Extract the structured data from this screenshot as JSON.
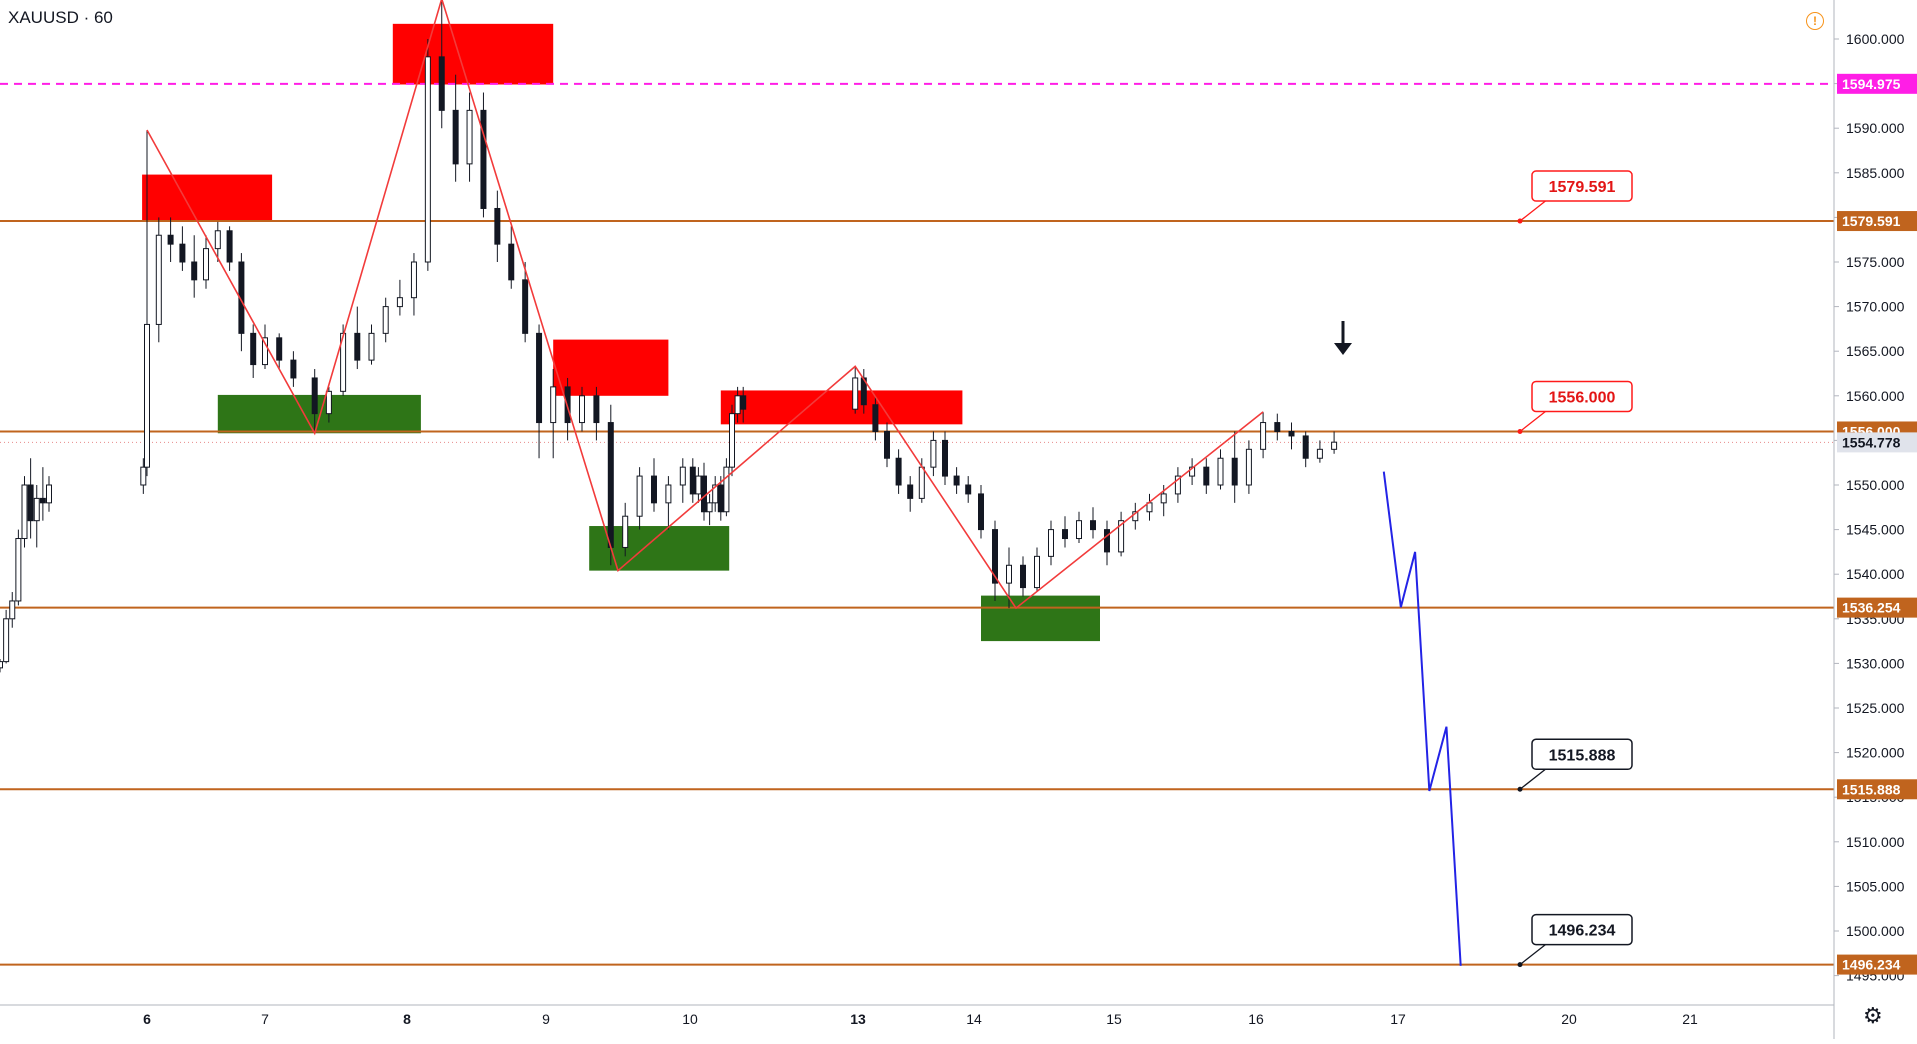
{
  "symbol": "XAUUSD · 60",
  "colors": {
    "level_line": "#c0641e",
    "resistance_zone": "#ff0000",
    "support_zone": "#2e7517",
    "zigzag": "#f23b3b",
    "projection": "#2323e6",
    "dashed_level": "#ff1ee6",
    "candle": "#131722",
    "axis_text": "#131722"
  },
  "icons": {
    "alert": "exclamation-circle-icon",
    "settings": "gear-icon",
    "down_arrow": "arrow-down-icon"
  },
  "chart_data": {
    "type": "candlestick",
    "title": "XAUUSD · 60",
    "ylim": [
      1492,
      1604
    ],
    "y_ticks": [
      "1600.000",
      "1595.000",
      "1590.000",
      "1585.000",
      "1580.000",
      "1575.000",
      "1570.000",
      "1565.000",
      "1560.000",
      "1555.000",
      "1550.000",
      "1545.000",
      "1540.000",
      "1535.000",
      "1530.000",
      "1525.000",
      "1520.000",
      "1515.000",
      "1510.000",
      "1505.000",
      "1500.000",
      "1495.000"
    ],
    "x_ticks": [
      "6",
      "7",
      "8",
      "9",
      "10",
      "13",
      "14",
      "15",
      "16",
      "17",
      "20",
      "21"
    ],
    "bold_x_ticks": [
      "6",
      "8",
      "13"
    ],
    "price_levels": [
      {
        "value": 1579.591,
        "label": "1579.591",
        "callout": true
      },
      {
        "value": 1556.0,
        "label": "1556.000",
        "callout": true
      },
      {
        "value": 1536.254,
        "label": "1536.254",
        "callout": false
      },
      {
        "value": 1515.888,
        "label": "1515.888",
        "callout": true
      },
      {
        "value": 1496.234,
        "label": "1496.234",
        "callout": true
      }
    ],
    "dashed_level": {
      "value": 1594.975,
      "label": "1594.975"
    },
    "last_price": {
      "value": 1554.778,
      "label": "1554.778"
    },
    "resistance_zones": [
      {
        "x0": 5.8,
        "x1": 7.05,
        "y0": 1579.6,
        "y1": 1584.8
      },
      {
        "x0": 7.9,
        "x1": 9.05,
        "y0": 1594.9,
        "y1": 1601.7
      },
      {
        "x0": 9.05,
        "x1": 9.85,
        "y0": 1560.0,
        "y1": 1566.3
      },
      {
        "x0": 10.55,
        "x1": 13.9,
        "y0": 1556.8,
        "y1": 1560.6
      }
    ],
    "support_zones": [
      {
        "x0": 6.6,
        "x1": 8.1,
        "y0": 1555.8,
        "y1": 1560.1
      },
      {
        "x0": 9.3,
        "x1": 10.7,
        "y0": 1540.4,
        "y1": 1545.4
      },
      {
        "x0": 14.05,
        "x1": 14.9,
        "y0": 1532.5,
        "y1": 1537.6
      }
    ],
    "zigzag": [
      {
        "x": 6.0,
        "y": 1589.8
      },
      {
        "x": 7.35,
        "y": 1555.8
      },
      {
        "x": 8.25,
        "y": 1604.5
      },
      {
        "x": 9.5,
        "y": 1540.4
      },
      {
        "x": 12.95,
        "y": 1563.3
      },
      {
        "x": 14.3,
        "y": 1536.2
      },
      {
        "x": 16.05,
        "y": 1558.2
      }
    ],
    "projection": [
      {
        "x": 16.9,
        "y": 1551.5
      },
      {
        "x": 17.05,
        "y": 1536.3
      },
      {
        "x": 17.3,
        "y": 1542.5
      },
      {
        "x": 17.55,
        "y": 1515.7
      },
      {
        "x": 17.85,
        "y": 1522.9
      },
      {
        "x": 18.1,
        "y": 1496.1
      }
    ],
    "candles": [
      [
        0.0,
        1529.5,
        1530.5,
        1529.0,
        1530.2
      ],
      [
        0.25,
        1530.2,
        1536.0,
        1530.0,
        1535.0
      ],
      [
        0.5,
        1535.0,
        1538.0,
        1534.0,
        1537.0
      ],
      [
        0.75,
        1537.0,
        1545.0,
        1536.5,
        1544.0
      ],
      [
        1.0,
        1544.0,
        1551.0,
        1543.0,
        1550.0
      ],
      [
        1.25,
        1550.0,
        1553.0,
        1544.0,
        1546.0
      ],
      [
        1.5,
        1546.0,
        1550.0,
        1543.0,
        1548.5
      ],
      [
        1.75,
        1548.5,
        1552.0,
        1546.0,
        1548.0
      ],
      [
        2.0,
        1548.0,
        1551.0,
        1547.0,
        1550.0
      ],
      [
        5.85,
        1550.0,
        1553.0,
        1549.0,
        1552.0
      ],
      [
        6.0,
        1552.0,
        1589.8,
        1551.0,
        1568.0
      ],
      [
        6.1,
        1568.0,
        1580.0,
        1566.0,
        1578.0
      ],
      [
        6.2,
        1578.0,
        1580.0,
        1575.0,
        1577.0
      ],
      [
        6.3,
        1577.0,
        1579.0,
        1574.0,
        1575.0
      ],
      [
        6.4,
        1575.0,
        1578.0,
        1571.0,
        1573.0
      ],
      [
        6.5,
        1573.0,
        1578.0,
        1572.0,
        1576.5
      ],
      [
        6.6,
        1576.5,
        1579.5,
        1575.0,
        1578.5
      ],
      [
        6.7,
        1578.5,
        1579.0,
        1574.0,
        1575.0
      ],
      [
        6.8,
        1575.0,
        1576.0,
        1565.0,
        1567.0
      ],
      [
        6.9,
        1567.0,
        1568.0,
        1562.0,
        1563.5
      ],
      [
        7.0,
        1563.5,
        1568.0,
        1563.0,
        1566.5
      ],
      [
        7.1,
        1566.5,
        1567.0,
        1563.0,
        1564.0
      ],
      [
        7.2,
        1564.0,
        1565.0,
        1561.0,
        1562.0
      ],
      [
        7.35,
        1562.0,
        1563.0,
        1556.0,
        1558.0
      ],
      [
        7.45,
        1558.0,
        1561.0,
        1557.0,
        1560.5
      ],
      [
        7.55,
        1560.5,
        1568.0,
        1560.0,
        1567.0
      ],
      [
        7.65,
        1567.0,
        1570.0,
        1563.0,
        1564.0
      ],
      [
        7.75,
        1564.0,
        1568.0,
        1563.5,
        1567.0
      ],
      [
        7.85,
        1567.0,
        1571.0,
        1566.0,
        1570.0
      ],
      [
        7.95,
        1570.0,
        1573.0,
        1569.0,
        1571.0
      ],
      [
        8.05,
        1571.0,
        1576.0,
        1569.0,
        1575.0
      ],
      [
        8.15,
        1575.0,
        1600.0,
        1574.0,
        1598.0
      ],
      [
        8.25,
        1598.0,
        1604.5,
        1590.0,
        1592.0
      ],
      [
        8.35,
        1592.0,
        1596.0,
        1584.0,
        1586.0
      ],
      [
        8.45,
        1586.0,
        1594.0,
        1584.0,
        1592.0
      ],
      [
        8.55,
        1592.0,
        1594.0,
        1580.0,
        1581.0
      ],
      [
        8.65,
        1581.0,
        1583.0,
        1575.0,
        1577.0
      ],
      [
        8.75,
        1577.0,
        1579.0,
        1572.0,
        1573.0
      ],
      [
        8.85,
        1573.0,
        1575.0,
        1566.0,
        1567.0
      ],
      [
        8.95,
        1567.0,
        1568.0,
        1553.0,
        1557.0
      ],
      [
        9.05,
        1557.0,
        1563.0,
        1553.0,
        1561.0
      ],
      [
        9.15,
        1561.0,
        1562.0,
        1555.0,
        1557.0
      ],
      [
        9.25,
        1557.0,
        1561.0,
        1556.0,
        1560.0
      ],
      [
        9.35,
        1560.0,
        1561.0,
        1555.0,
        1557.0
      ],
      [
        9.45,
        1557.0,
        1559.0,
        1541.0,
        1543.0
      ],
      [
        9.55,
        1543.0,
        1548.0,
        1542.0,
        1546.5
      ],
      [
        9.65,
        1546.5,
        1552.0,
        1545.0,
        1551.0
      ],
      [
        9.75,
        1551.0,
        1553.0,
        1547.0,
        1548.0
      ],
      [
        9.85,
        1548.0,
        1551.0,
        1545.0,
        1550.0
      ],
      [
        9.95,
        1550.0,
        1553.0,
        1548.0,
        1552.0
      ],
      [
        10.05,
        1552.0,
        1553.0,
        1548.0,
        1549.0
      ],
      [
        10.15,
        1549.0,
        1552.0,
        1548.0,
        1551.0
      ],
      [
        10.25,
        1551.0,
        1552.5,
        1546.0,
        1547.0
      ],
      [
        10.35,
        1547.0,
        1549.0,
        1545.5,
        1548.0
      ],
      [
        10.45,
        1548.0,
        1551.0,
        1547.0,
        1550.0
      ],
      [
        10.55,
        1550.0,
        1551.0,
        1546.0,
        1547.0
      ],
      [
        10.65,
        1547.0,
        1553.0,
        1546.5,
        1552.0
      ],
      [
        10.75,
        1552.0,
        1559.0,
        1551.0,
        1558.0
      ],
      [
        10.85,
        1558.0,
        1561.0,
        1557.0,
        1560.0
      ],
      [
        10.95,
        1560.0,
        1561.0,
        1557.0,
        1558.5
      ],
      [
        12.95,
        1558.5,
        1563.3,
        1558.0,
        1562.0
      ],
      [
        13.05,
        1562.0,
        1563.0,
        1558.0,
        1559.0
      ],
      [
        13.15,
        1559.0,
        1560.0,
        1555.0,
        1556.0
      ],
      [
        13.25,
        1556.0,
        1557.0,
        1552.0,
        1553.0
      ],
      [
        13.35,
        1553.0,
        1554.0,
        1549.0,
        1550.0
      ],
      [
        13.45,
        1550.0,
        1551.0,
        1547.0,
        1548.5
      ],
      [
        13.55,
        1548.5,
        1553.0,
        1548.0,
        1552.0
      ],
      [
        13.65,
        1552.0,
        1556.0,
        1551.0,
        1555.0
      ],
      [
        13.75,
        1555.0,
        1556.0,
        1550.0,
        1551.0
      ],
      [
        13.85,
        1551.0,
        1552.0,
        1549.0,
        1550.0
      ],
      [
        13.95,
        1550.0,
        1551.0,
        1548.0,
        1549.0
      ],
      [
        14.05,
        1549.0,
        1550.0,
        1544.0,
        1545.0
      ],
      [
        14.15,
        1545.0,
        1546.0,
        1537.0,
        1539.0
      ],
      [
        14.25,
        1539.0,
        1543.0,
        1536.2,
        1541.0
      ],
      [
        14.35,
        1541.0,
        1542.0,
        1537.5,
        1538.5
      ],
      [
        14.45,
        1538.5,
        1543.0,
        1538.0,
        1542.0
      ],
      [
        14.55,
        1542.0,
        1546.0,
        1541.0,
        1545.0
      ],
      [
        14.65,
        1545.0,
        1546.5,
        1543.0,
        1544.0
      ],
      [
        14.75,
        1544.0,
        1547.0,
        1543.5,
        1546.0
      ],
      [
        14.85,
        1546.0,
        1547.5,
        1544.0,
        1545.0
      ],
      [
        14.95,
        1545.0,
        1546.0,
        1541.0,
        1542.5
      ],
      [
        15.05,
        1542.5,
        1547.0,
        1542.0,
        1546.0
      ],
      [
        15.15,
        1546.0,
        1548.0,
        1545.0,
        1547.0
      ],
      [
        15.25,
        1547.0,
        1549.0,
        1546.0,
        1548.0
      ],
      [
        15.35,
        1548.0,
        1550.0,
        1546.5,
        1549.0
      ],
      [
        15.45,
        1549.0,
        1552.0,
        1548.0,
        1551.0
      ],
      [
        15.55,
        1551.0,
        1553.0,
        1550.0,
        1552.0
      ],
      [
        15.65,
        1552.0,
        1553.0,
        1549.0,
        1550.0
      ],
      [
        15.75,
        1550.0,
        1554.0,
        1549.5,
        1553.0
      ],
      [
        15.85,
        1553.0,
        1556.0,
        1548.0,
        1550.0
      ],
      [
        15.95,
        1550.0,
        1555.0,
        1549.0,
        1554.0
      ],
      [
        16.05,
        1554.0,
        1558.2,
        1553.0,
        1557.0
      ],
      [
        16.15,
        1557.0,
        1558.0,
        1555.0,
        1556.0
      ],
      [
        16.25,
        1556.0,
        1557.0,
        1554.0,
        1555.5
      ],
      [
        16.35,
        1555.5,
        1556.0,
        1552.0,
        1553.0
      ],
      [
        16.45,
        1553.0,
        1555.0,
        1552.5,
        1554.0
      ],
      [
        16.55,
        1554.0,
        1556.0,
        1553.5,
        1554.8
      ]
    ]
  }
}
